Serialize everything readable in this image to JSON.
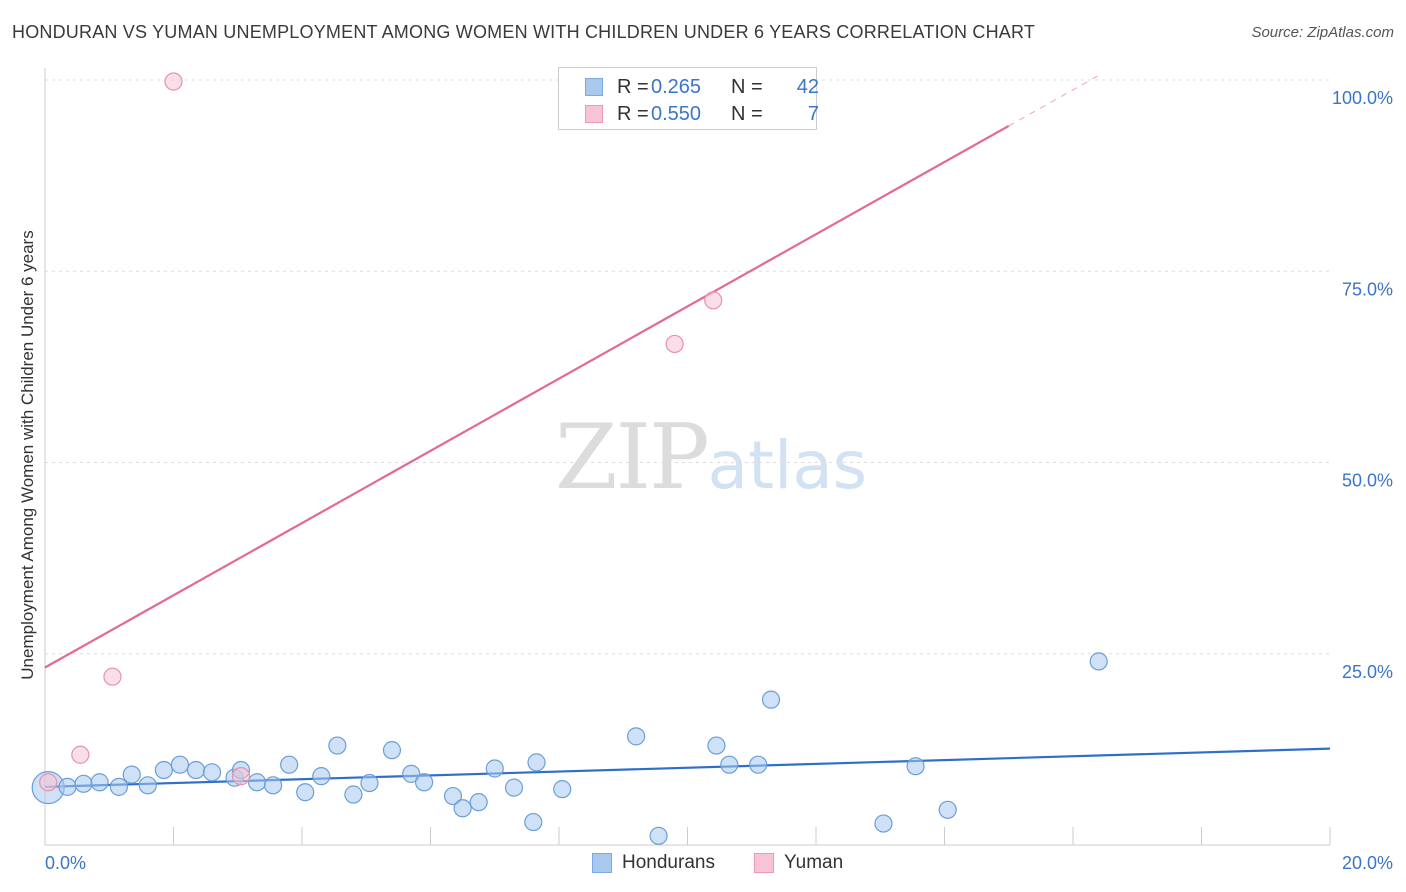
{
  "chart_data": {
    "type": "scatter",
    "title": "HONDURAN VS YUMAN UNEMPLOYMENT AMONG WOMEN WITH CHILDREN UNDER 6 YEARS CORRELATION CHART",
    "source": "Source: ZipAtlas.com",
    "ylabel": "Unemployment Among Women with Children Under 6 years",
    "xlabel": "",
    "xlim": [
      0,
      20
    ],
    "ylim": [
      0,
      100
    ],
    "x_tick_labels": {
      "left": "0.0%",
      "right": "20.0%"
    },
    "y_ticks": [
      {
        "value": 100,
        "label": "100.0%"
      },
      {
        "value": 75,
        "label": "75.0%"
      },
      {
        "value": 50,
        "label": "50.0%"
      },
      {
        "value": 25,
        "label": "25.0%"
      }
    ],
    "legend": [
      {
        "label": "R = ",
        "r": "0.265",
        "n_label": "N = ",
        "n": "42",
        "color": "#a8c8ee",
        "border": "#7aaae0"
      },
      {
        "label": "R = ",
        "r": "0.550",
        "n_label": "N = ",
        "n": "7",
        "color": "#f7c4d3",
        "border": "#ee98b3"
      }
    ],
    "series": [
      {
        "name": "Hondurans",
        "color": "#a8c8ee",
        "stroke": "#6a9fd8",
        "trend_color": "#2f6fcb",
        "trend": {
          "x0": 0,
          "y0": 7.6,
          "x1": 20,
          "y1": 12.6
        },
        "points": [
          {
            "x": 0.05,
            "y": 7.5,
            "size": "xl"
          },
          {
            "x": 0.35,
            "y": 7.6
          },
          {
            "x": 0.6,
            "y": 8.0
          },
          {
            "x": 0.85,
            "y": 8.2
          },
          {
            "x": 1.15,
            "y": 7.6
          },
          {
            "x": 1.35,
            "y": 9.2
          },
          {
            "x": 1.6,
            "y": 7.8
          },
          {
            "x": 1.85,
            "y": 9.8
          },
          {
            "x": 2.1,
            "y": 10.5
          },
          {
            "x": 2.35,
            "y": 9.8
          },
          {
            "x": 2.6,
            "y": 9.5
          },
          {
            "x": 2.95,
            "y": 8.8
          },
          {
            "x": 3.05,
            "y": 9.8
          },
          {
            "x": 3.3,
            "y": 8.2
          },
          {
            "x": 3.55,
            "y": 7.8
          },
          {
            "x": 3.8,
            "y": 10.5
          },
          {
            "x": 4.05,
            "y": 6.9
          },
          {
            "x": 4.3,
            "y": 9.0
          },
          {
            "x": 4.55,
            "y": 13.0
          },
          {
            "x": 4.8,
            "y": 6.6
          },
          {
            "x": 5.05,
            "y": 8.1
          },
          {
            "x": 5.4,
            "y": 12.4
          },
          {
            "x": 5.7,
            "y": 9.3
          },
          {
            "x": 5.9,
            "y": 8.2
          },
          {
            "x": 6.35,
            "y": 6.4
          },
          {
            "x": 6.5,
            "y": 4.8
          },
          {
            "x": 6.75,
            "y": 5.6
          },
          {
            "x": 7.0,
            "y": 10.0
          },
          {
            "x": 7.3,
            "y": 7.5
          },
          {
            "x": 7.6,
            "y": 3.0
          },
          {
            "x": 7.65,
            "y": 10.8
          },
          {
            "x": 8.05,
            "y": 7.3
          },
          {
            "x": 9.2,
            "y": 14.2
          },
          {
            "x": 9.55,
            "y": 1.2
          },
          {
            "x": 10.45,
            "y": 13.0
          },
          {
            "x": 10.65,
            "y": 10.5
          },
          {
            "x": 11.1,
            "y": 10.5
          },
          {
            "x": 11.3,
            "y": 19.0
          },
          {
            "x": 13.05,
            "y": 2.8
          },
          {
            "x": 13.55,
            "y": 10.3
          },
          {
            "x": 14.05,
            "y": 4.6
          },
          {
            "x": 16.4,
            "y": 24.0
          }
        ]
      },
      {
        "name": "Yuman",
        "color": "#f7c4d3",
        "stroke": "#e891ad",
        "trend_color": "#e26a93",
        "trend": {
          "x0": 0,
          "y0": 23.2,
          "x1": 15.0,
          "y1": 94.0
        },
        "trend_dashed": {
          "x0": 15.0,
          "y0": 94.0,
          "x1": 16.4,
          "y1": 100.6
        },
        "points": [
          {
            "x": 0.05,
            "y": 8.2
          },
          {
            "x": 0.55,
            "y": 11.8
          },
          {
            "x": 1.05,
            "y": 22.0
          },
          {
            "x": 2.0,
            "y": 99.8
          },
          {
            "x": 3.05,
            "y": 9.0
          },
          {
            "x": 9.8,
            "y": 65.5
          },
          {
            "x": 10.4,
            "y": 71.2
          }
        ]
      }
    ]
  },
  "watermark": {
    "zip": "ZIP",
    "atlas": "atlas"
  },
  "bottom_legend": [
    {
      "label": "Hondurans",
      "color": "#a8c8ee",
      "border": "#7aaae0"
    },
    {
      "label": "Yuman",
      "color": "#f7c4d3",
      "border": "#ee98b3"
    }
  ]
}
